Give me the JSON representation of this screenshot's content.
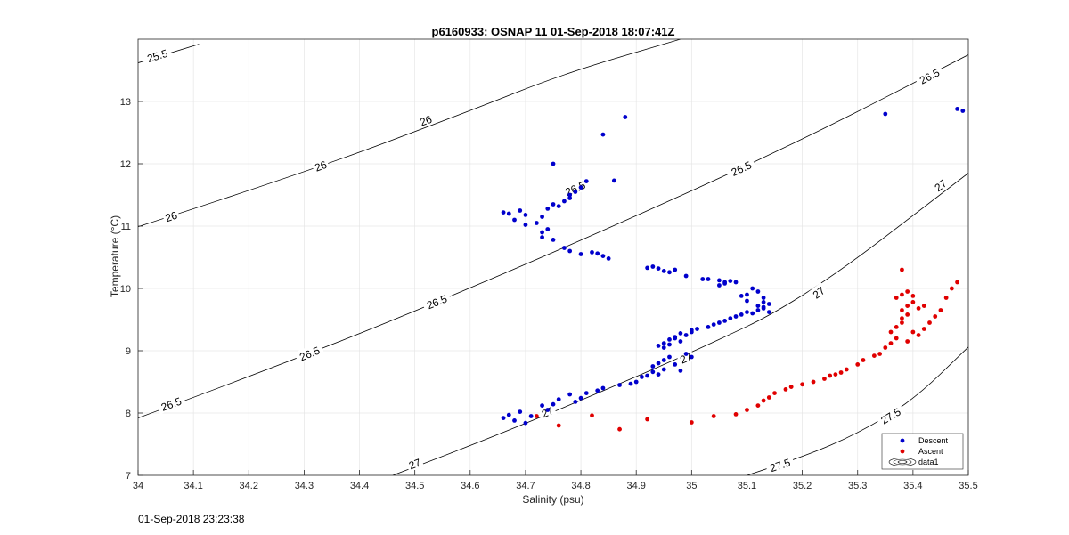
{
  "chart_data": {
    "type": "scatter",
    "title": "p6160933: OSNAP 11 01-Sep-2018 18:07:41Z",
    "xlabel": "Salinity (psu)",
    "ylabel": "Temperature (°C)",
    "xlim": [
      34,
      35.5
    ],
    "ylim": [
      7,
      14
    ],
    "xticks": [
      34,
      34.1,
      34.2,
      34.3,
      34.4,
      34.5,
      34.6,
      34.7,
      34.8,
      34.9,
      35,
      35.1,
      35.2,
      35.3,
      35.4,
      35.5
    ],
    "yticks": [
      7,
      8,
      9,
      10,
      11,
      12,
      13
    ],
    "grid": true,
    "legend": {
      "placement": "bottom-right",
      "entries": [
        "Descent",
        "Ascent",
        "data1"
      ]
    },
    "colors": {
      "descent": "#0000cc",
      "ascent": "#e00000",
      "contour": "#000000",
      "grid": "#e6e6e6"
    },
    "contours": {
      "name": "data1",
      "levels": [
        25.5,
        26,
        26.5,
        27,
        27.5
      ],
      "lines": [
        {
          "level": "25.5",
          "points": [
            [
              34,
              13.62
            ],
            [
              34.11,
              13.92
            ]
          ]
        },
        {
          "level": "26",
          "points": [
            [
              34,
              10.99
            ],
            [
              34.3,
              11.85
            ],
            [
              34.6,
              12.85
            ],
            [
              34.77,
              13.45
            ],
            [
              34.98,
              14.0
            ]
          ]
        },
        {
          "level": "26.5",
          "points": [
            [
              34,
              7.92
            ],
            [
              34.3,
              8.91
            ],
            [
              34.6,
              10.0
            ],
            [
              34.9,
              11.16
            ],
            [
              35.2,
              12.38
            ],
            [
              35.5,
              13.75
            ]
          ]
        },
        {
          "level": "27",
          "points": [
            [
              34.46,
              7.0
            ],
            [
              34.6,
              7.47
            ],
            [
              34.8,
              8.2
            ],
            [
              35.0,
              8.97
            ],
            [
              35.2,
              9.81
            ],
            [
              35.5,
              11.85
            ]
          ]
        },
        {
          "level": "27.5",
          "points": [
            [
              35.1,
              7.0
            ],
            [
              35.2,
              7.29
            ],
            [
              35.3,
              7.67
            ],
            [
              35.4,
              8.2
            ],
            [
              35.5,
              9.06
            ]
          ]
        }
      ],
      "labels": [
        {
          "text": "25.5",
          "at": [
            34.035,
            13.73
          ]
        },
        {
          "text": "26",
          "at": [
            34.06,
            11.15
          ]
        },
        {
          "text": "26",
          "at": [
            34.33,
            11.96
          ]
        },
        {
          "text": "26",
          "at": [
            34.52,
            12.69
          ]
        },
        {
          "text": "26.5",
          "at": [
            34.06,
            8.14
          ]
        },
        {
          "text": "26.5",
          "at": [
            34.31,
            8.95
          ]
        },
        {
          "text": "26.5",
          "at": [
            34.54,
            9.78
          ]
        },
        {
          "text": "26.5",
          "at": [
            34.79,
            11.6
          ]
        },
        {
          "text": "26.5",
          "at": [
            35.09,
            11.92
          ]
        },
        {
          "text": "26.5",
          "at": [
            35.43,
            13.4
          ]
        },
        {
          "text": "27",
          "at": [
            34.5,
            7.18
          ]
        },
        {
          "text": "27",
          "at": [
            34.74,
            8.01
          ]
        },
        {
          "text": "27",
          "at": [
            34.99,
            8.88
          ]
        },
        {
          "text": "27",
          "at": [
            35.23,
            9.93
          ]
        },
        {
          "text": "27",
          "at": [
            35.45,
            11.65
          ]
        },
        {
          "text": "27.5",
          "at": [
            35.16,
            7.16
          ]
        },
        {
          "text": "27.5",
          "at": [
            35.36,
            7.95
          ]
        }
      ]
    },
    "series": [
      {
        "name": "Descent",
        "x": [
          34.66,
          34.67,
          34.68,
          34.69,
          34.7,
          34.71,
          34.73,
          34.74,
          34.75,
          34.76,
          34.78,
          34.79,
          34.8,
          34.81,
          34.83,
          34.84,
          34.87,
          34.89,
          34.9,
          34.91,
          34.92,
          34.93,
          34.94,
          34.95,
          34.93,
          34.94,
          34.95,
          34.96,
          34.97,
          34.98,
          34.99,
          35.0,
          34.95,
          34.96,
          34.97,
          34.98,
          34.99,
          35.0,
          35.01,
          34.94,
          34.95,
          34.96,
          34.97,
          34.98,
          35.0,
          35.03,
          35.04,
          35.05,
          35.06,
          35.07,
          35.08,
          35.09,
          35.1,
          35.1,
          35.11,
          35.12,
          35.13,
          35.14,
          35.13,
          35.12,
          35.11,
          35.1,
          35.09,
          35.12,
          35.13,
          35.14,
          35.13,
          35.08,
          35.07,
          35.06,
          35.05,
          35.02,
          34.99,
          34.97,
          34.96,
          34.95,
          34.94,
          34.93,
          34.92,
          35.06,
          35.05,
          35.03,
          34.85,
          34.84,
          34.83,
          34.82,
          34.8,
          34.78,
          34.77,
          34.75,
          34.73,
          34.73,
          34.74,
          34.72,
          34.73,
          34.68,
          34.67,
          34.69,
          34.7,
          34.66,
          34.75,
          34.76,
          34.77,
          34.78,
          34.78,
          34.79,
          34.8,
          34.81,
          34.74,
          34.7,
          34.75,
          34.84,
          34.86,
          34.88,
          35.35,
          35.48,
          35.49
        ],
        "y": [
          7.92,
          7.97,
          7.88,
          8.02,
          7.84,
          7.95,
          8.12,
          8.05,
          8.14,
          8.22,
          8.3,
          8.18,
          8.24,
          8.32,
          8.36,
          8.4,
          8.45,
          8.47,
          8.5,
          8.58,
          8.6,
          8.66,
          8.62,
          8.7,
          8.75,
          8.8,
          8.85,
          8.9,
          8.78,
          8.68,
          8.95,
          8.9,
          9.05,
          9.1,
          9.2,
          9.15,
          9.25,
          9.3,
          9.35,
          9.08,
          9.12,
          9.18,
          9.22,
          9.28,
          9.33,
          9.38,
          9.42,
          9.45,
          9.48,
          9.52,
          9.55,
          9.58,
          9.62,
          9.9,
          10.0,
          9.95,
          9.85,
          9.75,
          9.7,
          9.65,
          9.6,
          9.8,
          9.88,
          9.72,
          9.68,
          9.62,
          9.78,
          10.1,
          10.12,
          10.08,
          10.05,
          10.15,
          10.2,
          10.3,
          10.26,
          10.28,
          10.32,
          10.35,
          10.33,
          10.1,
          10.13,
          10.15,
          10.48,
          10.52,
          10.56,
          10.58,
          10.55,
          10.6,
          10.65,
          10.78,
          10.82,
          10.9,
          10.95,
          11.05,
          11.15,
          11.1,
          11.2,
          11.25,
          11.18,
          11.22,
          11.35,
          11.32,
          11.4,
          11.45,
          11.5,
          11.55,
          11.62,
          11.72,
          11.28,
          11.02,
          12.0,
          12.47,
          11.73,
          12.75,
          12.8,
          12.88,
          12.85
        ]
      },
      {
        "name": "Ascent",
        "x": [
          34.72,
          34.76,
          34.82,
          34.87,
          34.92,
          35.0,
          35.04,
          35.08,
          35.1,
          35.12,
          35.13,
          35.14,
          35.15,
          35.17,
          35.18,
          35.2,
          35.22,
          35.24,
          35.25,
          35.26,
          35.27,
          35.28,
          35.3,
          35.31,
          35.33,
          35.34,
          35.35,
          35.36,
          35.37,
          35.36,
          35.37,
          35.38,
          35.38,
          35.39,
          35.38,
          35.39,
          35.4,
          35.37,
          35.38,
          35.39,
          35.4,
          35.41,
          35.42,
          35.43,
          35.44,
          35.45,
          35.46,
          35.47,
          35.48,
          35.38,
          35.39,
          35.4,
          35.41,
          35.42
        ],
        "y": [
          7.95,
          7.8,
          7.96,
          7.74,
          7.9,
          7.85,
          7.95,
          7.98,
          8.05,
          8.12,
          8.2,
          8.25,
          8.32,
          8.38,
          8.42,
          8.46,
          8.5,
          8.55,
          8.6,
          8.62,
          8.65,
          8.7,
          8.78,
          8.85,
          8.92,
          8.95,
          9.05,
          9.12,
          9.2,
          9.3,
          9.38,
          9.45,
          9.52,
          9.58,
          9.65,
          9.72,
          9.78,
          9.85,
          9.9,
          9.95,
          9.88,
          9.25,
          9.35,
          9.45,
          9.55,
          9.65,
          9.85,
          10.0,
          10.1,
          10.3,
          9.15,
          9.3,
          9.68,
          9.72
        ]
      }
    ]
  },
  "footer": {
    "timestamp": "01-Sep-2018 23:23:38"
  }
}
